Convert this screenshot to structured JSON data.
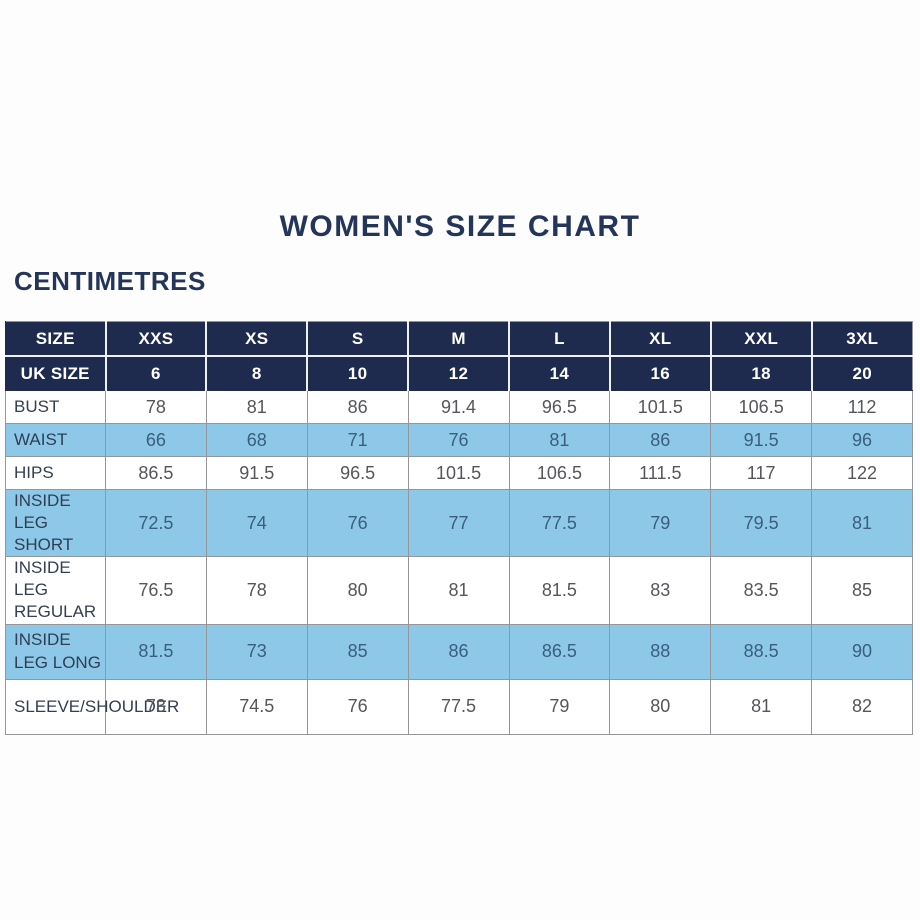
{
  "page": {
    "title": "WOMEN'S SIZE CHART",
    "unit_label": "CENTIMETRES"
  },
  "colors": {
    "header_navy": "#1f2b4e",
    "highlight_blue": "#8dc8e8",
    "title_navy": "#24355a"
  },
  "table": {
    "header": {
      "label": "SIZE",
      "sizes": [
        "XXS",
        "XS",
        "S",
        "M",
        "L",
        "XL",
        "XXL",
        "3XL"
      ]
    },
    "uk_row": {
      "label": "UK SIZE",
      "values": [
        "6",
        "8",
        "10",
        "12",
        "14",
        "16",
        "18",
        "20"
      ]
    },
    "rows": [
      {
        "label": "BUST",
        "highlight": false,
        "tall": false,
        "values": [
          "78",
          "81",
          "86",
          "91.4",
          "96.5",
          "101.5",
          "106.5",
          "112"
        ]
      },
      {
        "label": "WAIST",
        "highlight": true,
        "tall": false,
        "values": [
          "66",
          "68",
          "71",
          "76",
          "81",
          "86",
          "91.5",
          "96"
        ]
      },
      {
        "label": "HIPS",
        "highlight": false,
        "tall": false,
        "values": [
          "86.5",
          "91.5",
          "96.5",
          "101.5",
          "106.5",
          "111.5",
          "117",
          "122"
        ]
      },
      {
        "label": "INSIDE LEG SHORT",
        "highlight": true,
        "tall": true,
        "values": [
          "72.5",
          "74",
          "76",
          "77",
          "77.5",
          "79",
          "79.5",
          "81"
        ]
      },
      {
        "label": "INSIDE LEG REGULAR",
        "highlight": false,
        "tall": true,
        "values": [
          "76.5",
          "78",
          "80",
          "81",
          "81.5",
          "83",
          "83.5",
          "85"
        ]
      },
      {
        "label": "INSIDE LEG LONG",
        "highlight": true,
        "tall": true,
        "values": [
          "81.5",
          "73",
          "85",
          "86",
          "86.5",
          "88",
          "88.5",
          "90"
        ]
      },
      {
        "label": "SLEEVE/SHOULDER",
        "highlight": false,
        "tall": true,
        "values": [
          "73",
          "74.5",
          "76",
          "77.5",
          "79",
          "80",
          "81",
          "82"
        ]
      }
    ]
  },
  "chart_data": {
    "type": "table",
    "title": "WOMEN'S SIZE CHART",
    "unit": "CENTIMETRES",
    "columns": [
      "SIZE",
      "XXS",
      "XS",
      "S",
      "M",
      "L",
      "XL",
      "XXL",
      "3XL"
    ],
    "uk_sizes": [
      6,
      8,
      10,
      12,
      14,
      16,
      18,
      20
    ],
    "rows": [
      {
        "measure": "BUST",
        "values": [
          78,
          81,
          86,
          91.4,
          96.5,
          101.5,
          106.5,
          112
        ]
      },
      {
        "measure": "WAIST",
        "values": [
          66,
          68,
          71,
          76,
          81,
          86,
          91.5,
          96
        ]
      },
      {
        "measure": "HIPS",
        "values": [
          86.5,
          91.5,
          96.5,
          101.5,
          106.5,
          111.5,
          117,
          122
        ]
      },
      {
        "measure": "INSIDE LEG SHORT",
        "values": [
          72.5,
          74,
          76,
          77,
          77.5,
          79,
          79.5,
          81
        ]
      },
      {
        "measure": "INSIDE LEG REGULAR",
        "values": [
          76.5,
          78,
          80,
          81,
          81.5,
          83,
          83.5,
          85
        ]
      },
      {
        "measure": "INSIDE LEG LONG",
        "values": [
          81.5,
          73,
          85,
          86,
          86.5,
          88,
          88.5,
          90
        ]
      },
      {
        "measure": "SLEEVE/SHOULDER",
        "values": [
          73,
          74.5,
          76,
          77.5,
          79,
          80,
          81,
          82
        ]
      }
    ],
    "layout": {
      "highlighted_rows": [
        "WAIST",
        "INSIDE LEG SHORT",
        "INSIDE LEG LONG"
      ],
      "grid": true
    }
  }
}
